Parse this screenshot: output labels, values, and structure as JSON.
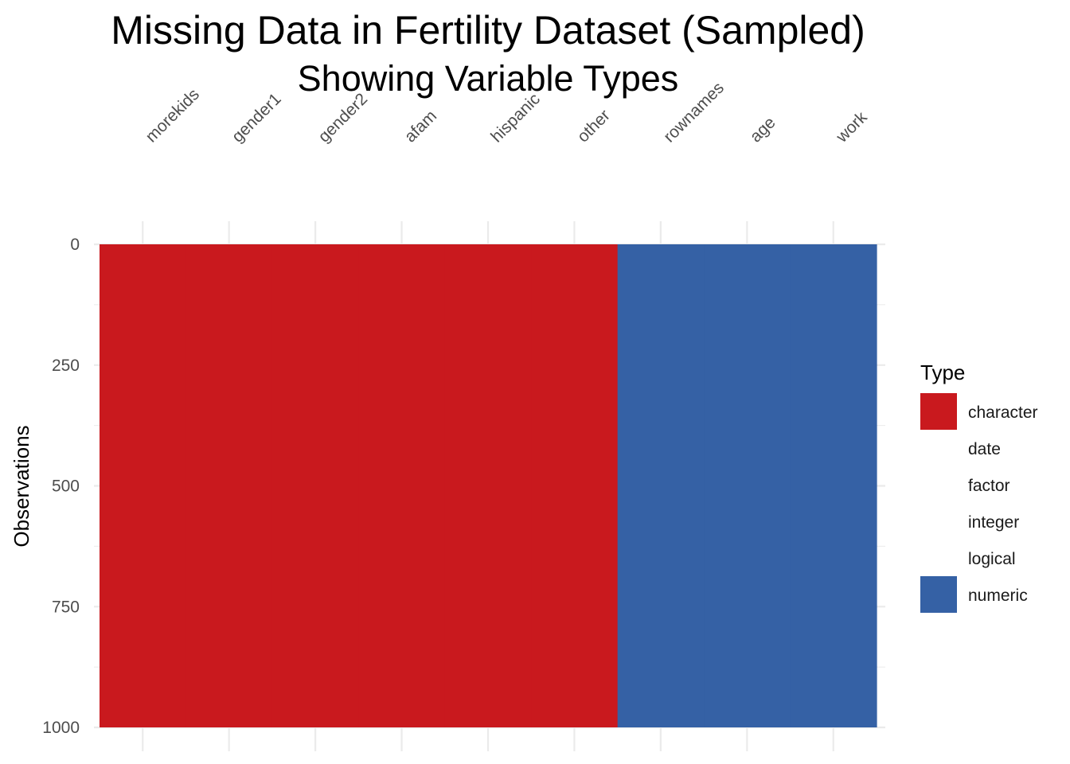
{
  "chart_data": {
    "type": "heatmap",
    "title": "Missing Data in Fertility Dataset (Sampled)",
    "subtitle": "Showing Variable Types",
    "ylabel": "Observations",
    "xlabel": "",
    "x_axis_position": "top",
    "variables": [
      "morekids",
      "gender1",
      "gender2",
      "afam",
      "hispanic",
      "other",
      "rownames",
      "age",
      "work"
    ],
    "variable_types": [
      "character",
      "character",
      "character",
      "character",
      "character",
      "character",
      "numeric",
      "numeric",
      "numeric"
    ],
    "y_ticks": [
      "0",
      "250",
      "500",
      "750",
      "1000"
    ],
    "ylim": [
      0,
      1000
    ],
    "y_reversed": true,
    "n_observations": 1000,
    "grid": true,
    "legend": {
      "title": "Type",
      "position": "right",
      "entries": [
        {
          "label": "character",
          "color": "#c9191e"
        },
        {
          "label": "date",
          "color": ""
        },
        {
          "label": "factor",
          "color": ""
        },
        {
          "label": "integer",
          "color": ""
        },
        {
          "label": "logical",
          "color": ""
        },
        {
          "label": "numeric",
          "color": "#3561a5"
        }
      ]
    },
    "colors": {
      "character": "#c9191e",
      "numeric": "#3561a5",
      "grid": "#ebebeb"
    }
  }
}
